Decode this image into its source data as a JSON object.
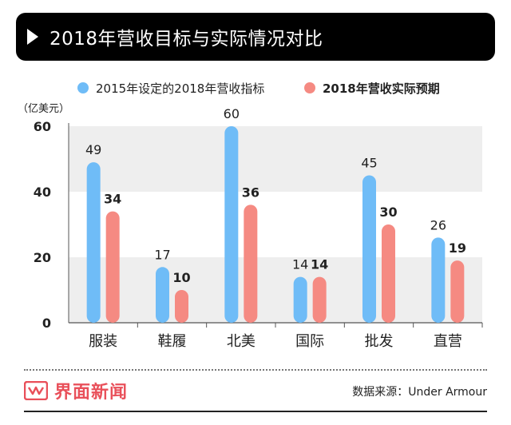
{
  "header": {
    "title": "2018年营收目标与实际情况对比"
  },
  "chart_data": {
    "type": "bar",
    "unit_label": "（亿美元）",
    "categories": [
      "服装",
      "鞋履",
      "北美",
      "国际",
      "批发",
      "直营"
    ],
    "series": [
      {
        "name": "2015年设定的2018年营收指标",
        "values": [
          49,
          17,
          60,
          14,
          45,
          26
        ],
        "color": "#6fbcf7",
        "label_weight": "normal"
      },
      {
        "name": "2018年营收实际预期",
        "values": [
          34,
          10,
          36,
          14,
          30,
          19
        ],
        "color": "#f58a82",
        "label_weight": "bold"
      }
    ],
    "ylim": [
      0,
      60
    ],
    "yticks": [
      0,
      20,
      40,
      60
    ],
    "legend_position": "top",
    "band_color": "#eeeeee"
  },
  "footer": {
    "brand": "界面新闻",
    "source": "数据来源：Under Armour",
    "brand_color": "#e9505a"
  }
}
